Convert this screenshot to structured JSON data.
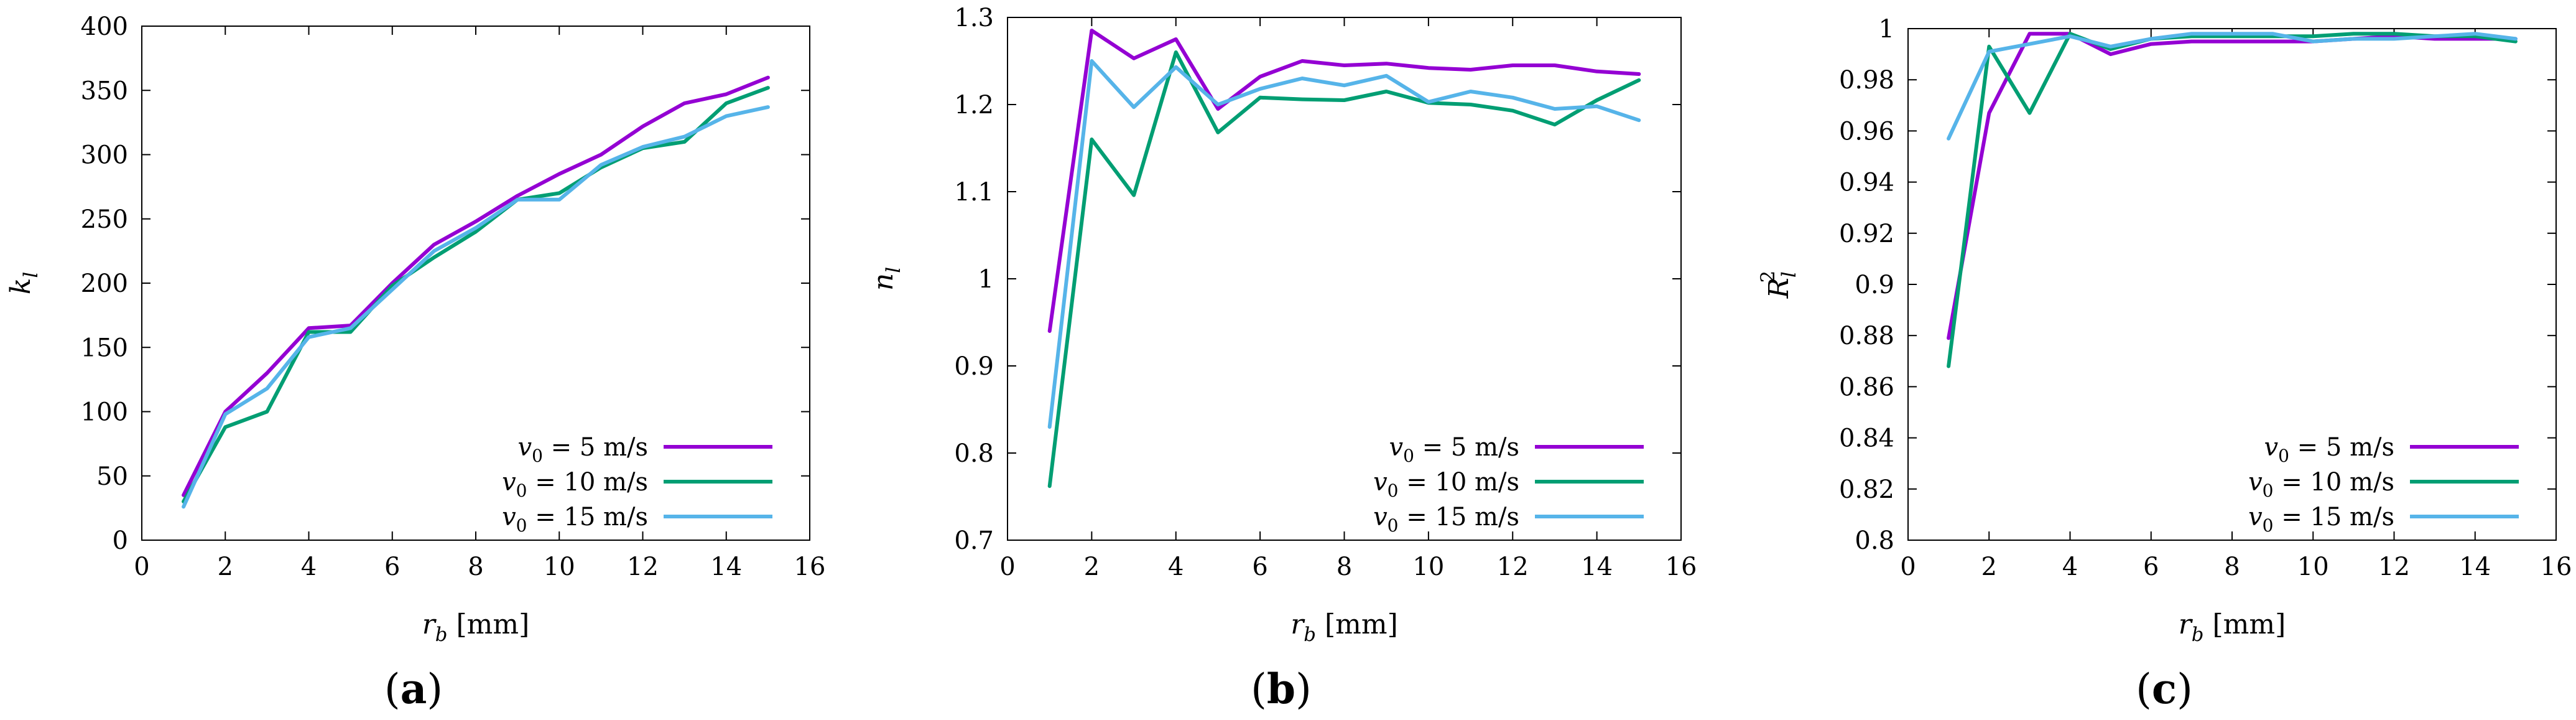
{
  "chart_data": [
    {
      "type": "line",
      "panel_label": "(a)",
      "xlabel": "r_b [mm]",
      "ylabel": "k_l",
      "xlim": [
        0,
        16
      ],
      "ylim": [
        0,
        400
      ],
      "x_ticks": [
        0,
        2,
        4,
        6,
        8,
        10,
        12,
        14,
        16
      ],
      "y_ticks": [
        0,
        50,
        100,
        150,
        200,
        250,
        300,
        350,
        400
      ],
      "x_tick_labels": [
        "0",
        "2",
        "4",
        "6",
        "8",
        "10",
        "12",
        "14",
        "16"
      ],
      "y_tick_labels": [
        "0",
        "50",
        "100",
        "150",
        "200",
        "250",
        "300",
        "350",
        "400"
      ],
      "legend_position": "bottom-right",
      "x": [
        1,
        2,
        3,
        4,
        5,
        6,
        7,
        8,
        9,
        10,
        11,
        12,
        13,
        14,
        15
      ],
      "series": [
        {
          "name": "v0 = 5 m/s",
          "color": "#9400D3",
          "values": [
            35,
            100,
            130,
            165,
            167,
            200,
            230,
            248,
            268,
            285,
            300,
            322,
            340,
            347,
            360
          ]
        },
        {
          "name": "v0 = 10 m/s",
          "color": "#009E73",
          "values": [
            30,
            88,
            100,
            162,
            162,
            198,
            220,
            240,
            265,
            270,
            290,
            305,
            310,
            340,
            352
          ]
        },
        {
          "name": "v0 = 15 m/s",
          "color": "#56B4E9",
          "values": [
            26,
            98,
            118,
            158,
            165,
            195,
            225,
            243,
            265,
            265,
            292,
            306,
            314,
            330,
            337
          ]
        }
      ]
    },
    {
      "type": "line",
      "panel_label": "(b)",
      "xlabel": "r_b [mm]",
      "ylabel": "n_l",
      "xlim": [
        0,
        16
      ],
      "ylim": [
        0.7,
        1.3
      ],
      "x_ticks": [
        0,
        2,
        4,
        6,
        8,
        10,
        12,
        14,
        16
      ],
      "y_ticks": [
        0.7,
        0.8,
        0.9,
        1.0,
        1.1,
        1.2,
        1.3
      ],
      "x_tick_labels": [
        "0",
        "2",
        "4",
        "6",
        "8",
        "10",
        "12",
        "14",
        "16"
      ],
      "y_tick_labels": [
        "0.7",
        "0.8",
        "0.9",
        "1",
        "1.1",
        "1.2",
        "1.3"
      ],
      "legend_position": "bottom-right",
      "x": [
        1,
        2,
        3,
        4,
        5,
        6,
        7,
        8,
        9,
        10,
        11,
        12,
        13,
        14,
        15
      ],
      "series": [
        {
          "name": "v0 = 5 m/s",
          "color": "#9400D3",
          "values": [
            0.94,
            1.285,
            1.253,
            1.275,
            1.195,
            1.232,
            1.25,
            1.245,
            1.247,
            1.242,
            1.24,
            1.245,
            1.245,
            1.238,
            1.235
          ]
        },
        {
          "name": "v0 = 10 m/s",
          "color": "#009E73",
          "values": [
            0.762,
            1.16,
            1.096,
            1.26,
            1.168,
            1.208,
            1.206,
            1.205,
            1.215,
            1.202,
            1.2,
            1.193,
            1.177,
            1.205,
            1.228
          ]
        },
        {
          "name": "v0 = 15 m/s",
          "color": "#56B4E9",
          "values": [
            0.83,
            1.25,
            1.197,
            1.243,
            1.2,
            1.218,
            1.23,
            1.222,
            1.233,
            1.203,
            1.215,
            1.208,
            1.195,
            1.198,
            1.182
          ]
        }
      ]
    },
    {
      "type": "line",
      "panel_label": "(c)",
      "xlabel": "r_b [mm]",
      "ylabel": "R_l^2",
      "xlim": [
        0,
        16
      ],
      "ylim": [
        0.8,
        1.0
      ],
      "x_ticks": [
        0,
        2,
        4,
        6,
        8,
        10,
        12,
        14,
        16
      ],
      "y_ticks": [
        0.8,
        0.82,
        0.84,
        0.86,
        0.88,
        0.9,
        0.92,
        0.94,
        0.96,
        0.98,
        1.0
      ],
      "x_tick_labels": [
        "0",
        "2",
        "4",
        "6",
        "8",
        "10",
        "12",
        "14",
        "16"
      ],
      "y_tick_labels": [
        "0.8",
        "0.82",
        "0.84",
        "0.86",
        "0.88",
        "0.9",
        "0.92",
        "0.94",
        "0.96",
        "0.98",
        "1"
      ],
      "legend_position": "bottom-right",
      "x": [
        1,
        2,
        3,
        4,
        5,
        6,
        7,
        8,
        9,
        10,
        11,
        12,
        13,
        14,
        15
      ],
      "series": [
        {
          "name": "v0 = 5 m/s",
          "color": "#9400D3",
          "values": [
            0.879,
            0.967,
            0.998,
            0.998,
            0.99,
            0.994,
            0.995,
            0.995,
            0.995,
            0.995,
            0.996,
            0.997,
            0.996,
            0.996,
            0.996
          ]
        },
        {
          "name": "v0 = 10 m/s",
          "color": "#009E73",
          "values": [
            0.868,
            0.993,
            0.967,
            0.998,
            0.992,
            0.996,
            0.997,
            0.997,
            0.997,
            0.997,
            0.998,
            0.998,
            0.997,
            0.997,
            0.995
          ]
        },
        {
          "name": "v0 = 15 m/s",
          "color": "#56B4E9",
          "values": [
            0.957,
            0.991,
            0.994,
            0.997,
            0.993,
            0.996,
            0.998,
            0.998,
            0.998,
            0.995,
            0.996,
            0.996,
            0.997,
            0.998,
            0.996
          ]
        }
      ]
    }
  ]
}
